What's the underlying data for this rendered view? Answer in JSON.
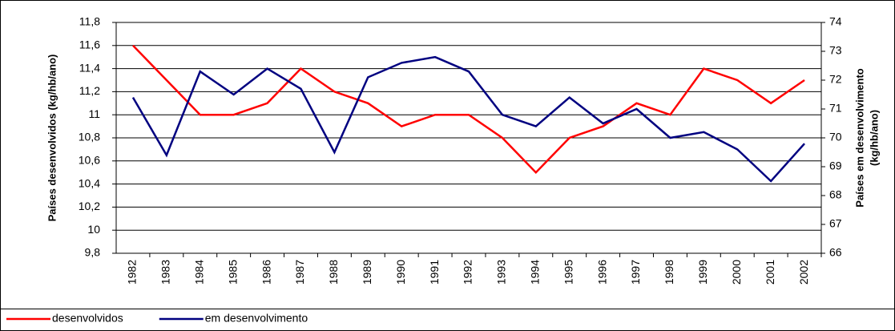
{
  "chart_data": {
    "type": "line",
    "y_label": "Países desenvolvidos (kg/hb/ano)",
    "y2_label": [
      "Países em desenvolvimento",
      "(kg/hb/ano)"
    ],
    "categories": [
      "1982",
      "1983",
      "1984",
      "1985",
      "1986",
      "1987",
      "1988",
      "1989",
      "1990",
      "1991",
      "1992",
      "1993",
      "1994",
      "1995",
      "1996",
      "1997",
      "1998",
      "1999",
      "2000",
      "2001",
      "2002"
    ],
    "series": [
      {
        "name": "desenvolvidos",
        "color": "#ff0000",
        "values": [
          11.6,
          11.3,
          11.0,
          11.0,
          11.1,
          11.4,
          11.2,
          11.1,
          10.9,
          11.0,
          11.0,
          10.8,
          10.5,
          10.8,
          10.9,
          11.1,
          11.0,
          11.4,
          11.3,
          11.1,
          11.3
        ]
      },
      {
        "name": "em desenvolvimento",
        "color": "#000080",
        "axis": "y2",
        "values": [
          71.4,
          69.4,
          72.3,
          71.5,
          72.4,
          71.7,
          69.5,
          72.1,
          72.6,
          72.8,
          72.3,
          70.8,
          70.4,
          71.4,
          70.5,
          71.0,
          70.0,
          70.2,
          69.6,
          68.5,
          69.8
        ]
      }
    ],
    "ylim": [
      9.8,
      11.8
    ],
    "yticks": [
      {
        "value": 9.8,
        "label": "9,8"
      },
      10,
      {
        "value": 10.2,
        "label": "10,2"
      },
      {
        "value": 10.4,
        "label": "10,4"
      },
      {
        "value": 10.6,
        "label": "10,6"
      },
      {
        "value": 10.8,
        "label": "10,8"
      },
      11,
      {
        "value": 11.2,
        "label": "11,2"
      },
      {
        "value": 11.4,
        "label": "11,4"
      },
      {
        "value": 11.6,
        "label": "11,6"
      },
      {
        "value": 11.8,
        "label": "11,8"
      }
    ],
    "y2lim": [
      66,
      74
    ],
    "y2ticks": [
      66,
      67,
      68,
      69,
      70,
      71,
      72,
      73,
      74
    ],
    "grid": true,
    "legend": "bottom-left"
  }
}
